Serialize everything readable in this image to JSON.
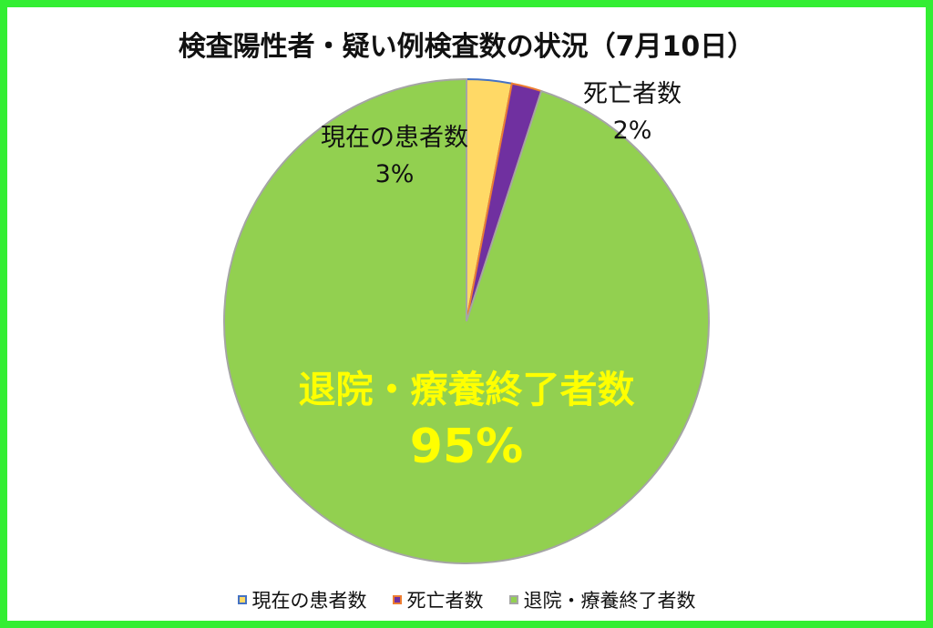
{
  "chart_data": {
    "type": "pie",
    "title": "検査陽性者・疑い例検査数の状況（7月10日）",
    "slices": [
      {
        "label": "現在の患者数",
        "value": 3,
        "value_label": "3%",
        "color": "#ffd966",
        "border": "#4472c4"
      },
      {
        "label": "死亡者数",
        "value": 2,
        "value_label": "2%",
        "color": "#7030a0",
        "border": "#ed7d31"
      },
      {
        "label": "退院・療養終了者数",
        "value": 95,
        "value_label": "95%",
        "color": "#92d050",
        "border": "#a5a5a5"
      }
    ],
    "legend_position": "bottom",
    "frame_color": "#33ee33"
  }
}
